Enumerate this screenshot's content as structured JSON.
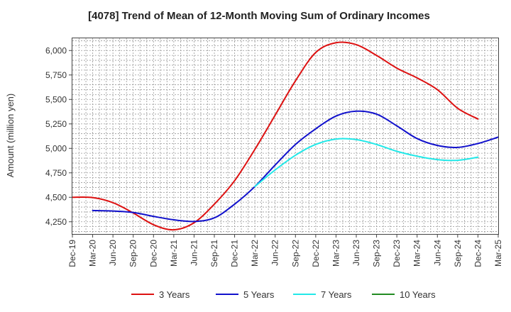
{
  "chart_data": {
    "type": "line",
    "title": "[4078]  Trend of Mean of 12-Month Moving Sum of Ordinary Incomes",
    "xlabel": "",
    "ylabel": "Amount (million yen)",
    "ylim": [
      4125,
      6125
    ],
    "yticks": [
      4250,
      4500,
      4750,
      5000,
      5250,
      5500,
      5750,
      6000
    ],
    "ytick_labels": [
      "4,250",
      "4,500",
      "4,750",
      "5,000",
      "5,250",
      "5,500",
      "5,750",
      "6,000"
    ],
    "x_categories": [
      "Dec-19",
      "Mar-20",
      "Jun-20",
      "Sep-20",
      "Dec-20",
      "Mar-21",
      "Jun-21",
      "Sep-21",
      "Dec-21",
      "Mar-22",
      "Jun-22",
      "Sep-22",
      "Dec-22",
      "Mar-23",
      "Jun-23",
      "Sep-23",
      "Dec-23",
      "Mar-24",
      "Jun-24",
      "Sep-24",
      "Dec-24",
      "Mar-25"
    ],
    "grid": true,
    "legend_position": "bottom",
    "series": [
      {
        "name": "3 Years",
        "color": "#dd1111",
        "start_index": 0,
        "values": [
          4500,
          4497,
          4445,
          4340,
          4220,
          4168,
          4240,
          4430,
          4670,
          4990,
          5340,
          5690,
          5980,
          6080,
          6060,
          5950,
          5820,
          5720,
          5600,
          5410,
          5300
        ]
      },
      {
        "name": "5 Years",
        "color": "#1111cc",
        "start_index": 1,
        "values": [
          4365,
          4360,
          4345,
          4305,
          4270,
          4253,
          4290,
          4430,
          4610,
          4830,
          5040,
          5200,
          5330,
          5380,
          5350,
          5230,
          5100,
          5030,
          5010,
          5050,
          5115
        ]
      },
      {
        "name": "7 Years",
        "color": "#22e8e8",
        "start_index": 9,
        "values": [
          4610,
          4780,
          4930,
          5040,
          5095,
          5090,
          5040,
          4970,
          4920,
          4885,
          4878,
          4910
        ]
      },
      {
        "name": "10 Years",
        "color": "#228b22",
        "start_index": 0,
        "values": []
      }
    ]
  }
}
